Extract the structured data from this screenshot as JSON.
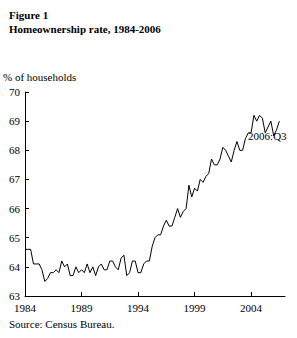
{
  "chart_data": {
    "type": "line",
    "title": "Figure 1",
    "subtitle": "Homeownership rate, 1984-2006",
    "y_label": "% of households",
    "source": "Source: Census Bureau.",
    "annotation": "2006:Q3",
    "color": "#000000",
    "grid": false,
    "x": [
      1984,
      1984.25,
      1984.5,
      1984.75,
      1985,
      1985.25,
      1985.5,
      1985.75,
      1986,
      1986.25,
      1986.5,
      1986.75,
      1987,
      1987.25,
      1987.5,
      1987.75,
      1988,
      1988.25,
      1988.5,
      1988.75,
      1989,
      1989.25,
      1989.5,
      1989.75,
      1990,
      1990.25,
      1990.5,
      1990.75,
      1991,
      1991.25,
      1991.5,
      1991.75,
      1992,
      1992.25,
      1992.5,
      1992.75,
      1993,
      1993.25,
      1993.5,
      1993.75,
      1994,
      1994.25,
      1994.5,
      1994.75,
      1995,
      1995.25,
      1995.5,
      1995.75,
      1996,
      1996.25,
      1996.5,
      1996.75,
      1997,
      1997.25,
      1997.5,
      1997.75,
      1998,
      1998.25,
      1998.5,
      1998.75,
      1999,
      1999.25,
      1999.5,
      1999.75,
      2000,
      2000.25,
      2000.5,
      2000.75,
      2001,
      2001.25,
      2001.5,
      2001.75,
      2002,
      2002.25,
      2002.5,
      2002.75,
      2003,
      2003.25,
      2003.5,
      2003.75,
      2004,
      2004.25,
      2004.5,
      2004.75,
      2005,
      2005.25,
      2005.5,
      2005.75,
      2006,
      2006.25,
      2006.5
    ],
    "values": [
      64.6,
      64.6,
      64.6,
      64.1,
      64.1,
      64.1,
      63.9,
      63.5,
      63.6,
      63.8,
      63.8,
      63.9,
      63.8,
      64.2,
      64.0,
      64.1,
      63.7,
      63.7,
      64.0,
      63.8,
      63.9,
      63.8,
      64.1,
      63.8,
      64.0,
      63.7,
      64.0,
      64.1,
      63.9,
      63.9,
      64.2,
      64.2,
      64.0,
      63.9,
      64.3,
      64.4,
      63.7,
      63.8,
      64.2,
      64.2,
      63.8,
      63.8,
      64.1,
      64.2,
      64.2,
      64.7,
      65.0,
      65.1,
      65.1,
      65.4,
      65.6,
      65.4,
      65.4,
      65.7,
      66.0,
      65.7,
      65.9,
      66.0,
      66.8,
      66.4,
      66.7,
      66.6,
      67.0,
      66.9,
      67.1,
      67.2,
      67.7,
      67.5,
      67.5,
      67.7,
      68.1,
      68.0,
      67.8,
      67.6,
      68.0,
      68.3,
      68.0,
      68.0,
      68.4,
      68.6,
      68.6,
      69.2,
      69.0,
      69.2,
      69.1,
      68.6,
      68.8,
      69.0,
      68.5,
      68.7,
      69.0
    ],
    "xlim": [
      1984,
      2007
    ],
    "xticks": [
      1984,
      1989,
      1994,
      1999,
      2004
    ],
    "ylim": [
      63,
      70
    ],
    "yticks": [
      63,
      64,
      65,
      66,
      67,
      68,
      69,
      70
    ]
  }
}
